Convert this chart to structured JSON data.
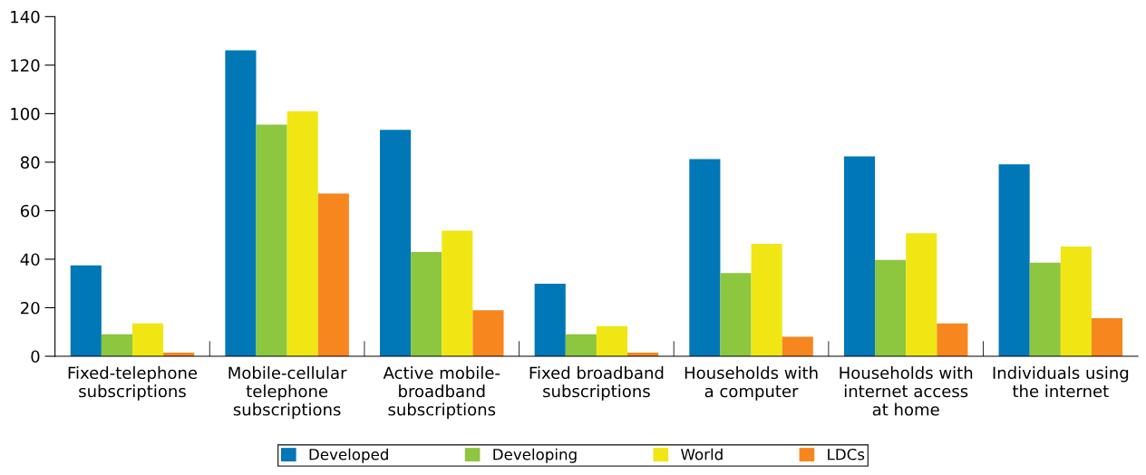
{
  "chart_data": {
    "type": "bar",
    "categories": [
      "Fixed-telephone\nsubscriptions",
      "Mobile-cellular\ntelephone\nsubscriptions",
      "Active mobile-\nbroadband\nsubscriptions",
      "Fixed broadband\nsubscriptions",
      "Households with\na computer",
      "Households with\ninternet access\nat home",
      "Individuals using\nthe internet"
    ],
    "series": [
      {
        "name": "Developed",
        "color": "#0077b6",
        "values": [
          37.5,
          126.1,
          93.3,
          29.9,
          81.3,
          82.4,
          79.1
        ]
      },
      {
        "name": "Developing",
        "color": "#8dc63f",
        "values": [
          9.1,
          95.5,
          43,
          9.1,
          34.3,
          39.7,
          38.6
        ]
      },
      {
        "name": "World",
        "color": "#f0e614",
        "values": [
          13.5,
          101,
          51.8,
          12.4,
          46.3,
          50.7,
          45.2
        ]
      },
      {
        "name": "LDCs",
        "color": "#f7861e",
        "values": [
          1.5,
          67.1,
          19,
          1.5,
          8,
          13.5,
          15.7
        ]
      }
    ],
    "ylim": [
      0,
      140
    ],
    "yticks": [
      0,
      20,
      40,
      60,
      80,
      100,
      120,
      140
    ],
    "grid": false,
    "legend": "bottom"
  }
}
